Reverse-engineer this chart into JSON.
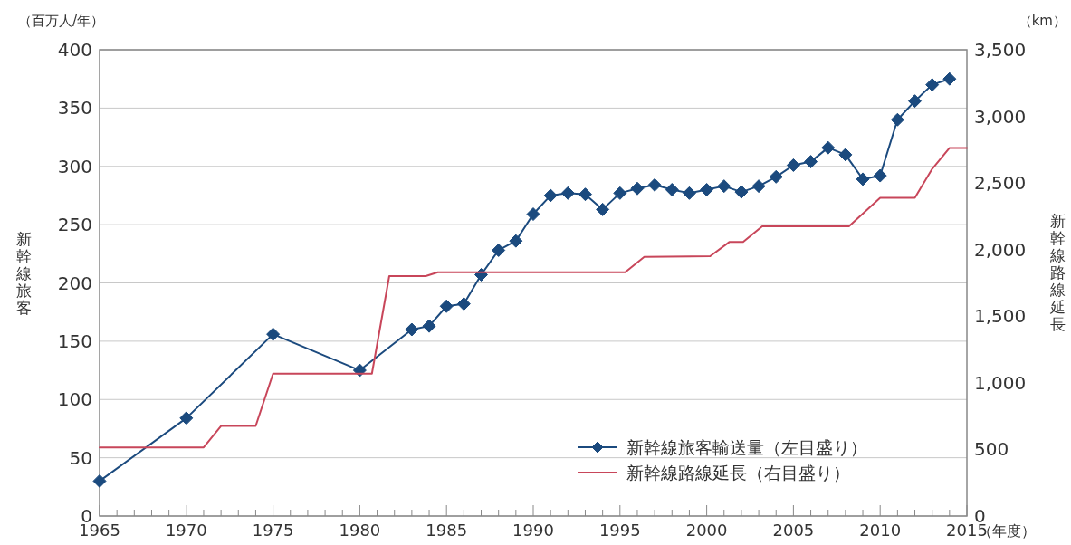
{
  "chart_data": {
    "type": "line",
    "xlabel": "（年度）",
    "ylabel": "新幹線旅客",
    "y2label": "新幹線路線延長",
    "annotations": [
      "（百万人/年）",
      "（km）"
    ],
    "xlim": [
      1965,
      2015
    ],
    "xticks": [
      1965,
      {
        "value": 1966,
        "label": null
      },
      {
        "value": 1967,
        "label": null
      },
      {
        "value": 1968,
        "label": null
      },
      {
        "value": 1969,
        "label": null
      },
      1970,
      {
        "value": 1971,
        "label": null
      },
      {
        "value": 1972,
        "label": null
      },
      {
        "value": 1973,
        "label": null
      },
      {
        "value": 1974,
        "label": null
      },
      1975,
      {
        "value": 1976,
        "label": null
      },
      {
        "value": 1977,
        "label": null
      },
      {
        "value": 1978,
        "label": null
      },
      {
        "value": 1979,
        "label": null
      },
      1980,
      {
        "value": 1981,
        "label": null
      },
      {
        "value": 1982,
        "label": null
      },
      {
        "value": 1983,
        "label": null
      },
      {
        "value": 1984,
        "label": null
      },
      1985,
      {
        "value": 1986,
        "label": null
      },
      {
        "value": 1987,
        "label": null
      },
      {
        "value": 1988,
        "label": null
      },
      {
        "value": 1989,
        "label": null
      },
      1990,
      {
        "value": 1991,
        "label": null
      },
      {
        "value": 1992,
        "label": null
      },
      {
        "value": 1993,
        "label": null
      },
      {
        "value": 1994,
        "label": null
      },
      1995,
      {
        "value": 1996,
        "label": null
      },
      {
        "value": 1997,
        "label": null
      },
      {
        "value": 1998,
        "label": null
      },
      {
        "value": 1999,
        "label": null
      },
      2000,
      {
        "value": 2001,
        "label": null
      },
      {
        "value": 2002,
        "label": null
      },
      {
        "value": 2003,
        "label": null
      },
      {
        "value": 2004,
        "label": null
      },
      2005,
      {
        "value": 2006,
        "label": null
      },
      {
        "value": 2007,
        "label": null
      },
      {
        "value": 2008,
        "label": null
      },
      {
        "value": 2009,
        "label": null
      },
      2010,
      {
        "value": 2011,
        "label": null
      },
      {
        "value": 2012,
        "label": null
      },
      {
        "value": 2013,
        "label": null
      },
      {
        "value": 2014,
        "label": null
      },
      2015
    ],
    "ylim": [
      0,
      400
    ],
    "yticks": [
      0,
      50,
      100,
      150,
      200,
      250,
      300,
      350,
      400
    ],
    "y2lim": [
      0,
      3500
    ],
    "y2ticks": [
      0,
      500,
      {
        "value": 1000,
        "label": "1,000"
      },
      {
        "value": 1500,
        "label": "1,500"
      },
      {
        "value": 2000,
        "label": "2,000"
      },
      {
        "value": 2500,
        "label": "2,500"
      },
      {
        "value": 3000,
        "label": "3,000"
      },
      {
        "value": 3500,
        "label": "3,500"
      }
    ],
    "grid": "y",
    "legend": "bottom right",
    "series": [
      {
        "name": "新幹線旅客輸送量（左目盛り）",
        "color": "#1b4a7e",
        "marker": "diamond",
        "x": [
          1965,
          1970,
          1975,
          1980,
          1983,
          1984,
          1985,
          1986,
          1987,
          1988,
          1989,
          1990,
          1991,
          1992,
          1993,
          1994,
          1995,
          1996,
          1997,
          1998,
          1999,
          2000,
          2001,
          2002,
          2003,
          2004,
          2005,
          2006,
          2007,
          2008,
          2009,
          2010,
          2011,
          2012,
          2013,
          2014
        ],
        "values": [
          30,
          84,
          156,
          125,
          160,
          163,
          180,
          182,
          207,
          228,
          236,
          259,
          275,
          277,
          276,
          263,
          277,
          281,
          284,
          280,
          277,
          280,
          283,
          278,
          283,
          291,
          301,
          304,
          316,
          310,
          289,
          292,
          340,
          356,
          370,
          375
        ]
      },
      {
        "name": "新幹線路線延長（右目盛り）",
        "color": "#c8465a",
        "marker": "none",
        "axis": "y2",
        "x": [
          1965,
          1971,
          1972,
          1974,
          1975,
          1980.7,
          1981.7,
          1983.8,
          1984.5,
          1995.3,
          1996.4,
          2000.2,
          2001.3,
          2002.1,
          2003.2,
          2008.2,
          2010,
          2012,
          2013,
          2014,
          2015
        ],
        "values": [
          515,
          515,
          676,
          676,
          1069,
          1069,
          1801,
          1801,
          1830,
          1830,
          1945,
          1950,
          2057,
          2057,
          2175,
          2175,
          2389,
          2389,
          2606,
          2763,
          2763
        ]
      }
    ]
  }
}
